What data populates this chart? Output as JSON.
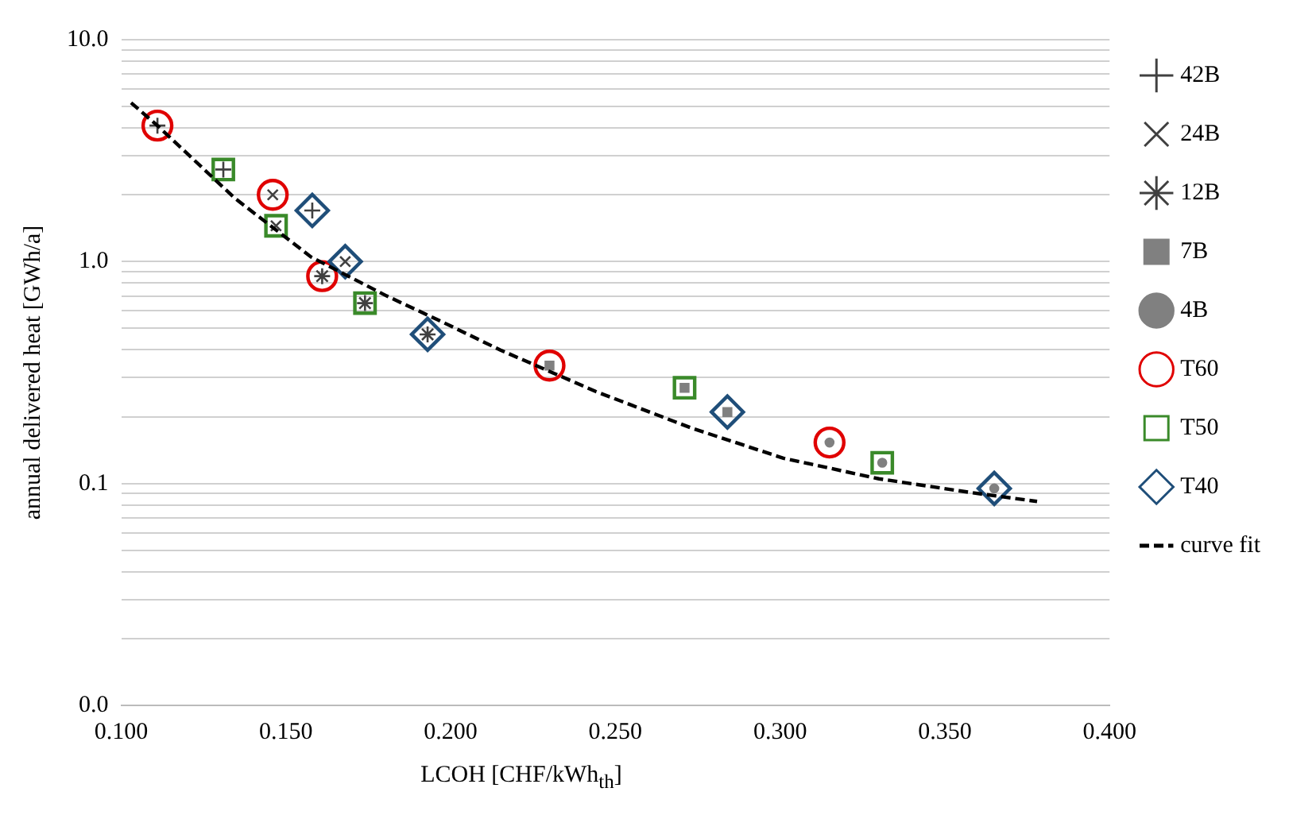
{
  "chart_data": {
    "type": "scatter",
    "xlabel": "LCOH [CHF/kWh$_{th}$]",
    "ylabel": "annual delivered heat [GWh/a]",
    "log": "y",
    "grid": "y",
    "legend": "right",
    "xlim": [
      0.1,
      0.4
    ],
    "xticks": [
      {
        "value": 0.1,
        "label": "0.100"
      },
      {
        "value": 0.15,
        "label": "0.150"
      },
      {
        "value": 0.2,
        "label": "0.200"
      },
      {
        "value": 0.25,
        "label": "0.250"
      },
      {
        "value": 0.3,
        "label": "0.300"
      },
      {
        "value": 0.35,
        "label": "0.350"
      },
      {
        "value": 0.4,
        "label": "0.400"
      }
    ],
    "ylim": [
      0.01,
      10
    ],
    "yticks": [
      {
        "value": 0.01,
        "label": "0.0"
      },
      {
        "value": 0.02,
        "label": null
      },
      {
        "value": 0.03,
        "label": null
      },
      {
        "value": 0.04,
        "label": null
      },
      {
        "value": 0.05,
        "label": null
      },
      {
        "value": 0.06,
        "label": null
      },
      {
        "value": 0.07,
        "label": null
      },
      {
        "value": 0.08,
        "label": null
      },
      {
        "value": 0.09,
        "label": null
      },
      {
        "value": 0.1,
        "label": "0.1"
      },
      {
        "value": 0.2,
        "label": null
      },
      {
        "value": 0.3,
        "label": null
      },
      {
        "value": 0.4,
        "label": null
      },
      {
        "value": 0.5,
        "label": null
      },
      {
        "value": 0.6,
        "label": null
      },
      {
        "value": 0.7,
        "label": null
      },
      {
        "value": 0.8,
        "label": null
      },
      {
        "value": 0.9,
        "label": null
      },
      {
        "value": 1,
        "label": "1.0"
      },
      {
        "value": 2,
        "label": null
      },
      {
        "value": 3,
        "label": null
      },
      {
        "value": 4,
        "label": null
      },
      {
        "value": 5,
        "label": null
      },
      {
        "value": 6,
        "label": null
      },
      {
        "value": 7,
        "label": null
      },
      {
        "value": 8,
        "label": null
      },
      {
        "value": 9,
        "label": null
      },
      {
        "value": 10,
        "label": "10.0"
      }
    ],
    "series": [
      {
        "name": "42B",
        "type": "scatter",
        "marker": "cross",
        "color": "#404040",
        "x": [
          0.111,
          0.131,
          0.158
        ],
        "values": [
          4.1,
          2.6,
          1.7
        ]
      },
      {
        "name": "24B",
        "type": "scatter",
        "marker": "x",
        "color": "#404040",
        "x": [
          0.146,
          0.147,
          0.168
        ],
        "values": [
          2.0,
          1.45,
          1.0
        ]
      },
      {
        "name": "12B",
        "type": "scatter",
        "color": "#404040",
        "x": [
          0.161,
          0.174,
          0.193
        ],
        "values": [
          0.86,
          0.65,
          0.47
        ]
      },
      {
        "name": "7B",
        "type": "scatter",
        "marker": "square",
        "color": "#808080",
        "x": [
          0.23,
          0.271,
          0.284
        ],
        "values": [
          0.34,
          0.27,
          0.21
        ]
      },
      {
        "name": "4B",
        "type": "scatter",
        "marker": "circle",
        "color": "#808080",
        "x": [
          0.315,
          0.331,
          0.365
        ],
        "values": [
          0.153,
          0.124,
          0.095
        ]
      },
      {
        "name": "T60",
        "type": "scatter",
        "marker": "circle",
        "color": "#e00000",
        "x": [
          0.111,
          0.146,
          0.161,
          0.23,
          0.315
        ],
        "values": [
          4.1,
          2.0,
          0.86,
          0.34,
          0.153
        ]
      },
      {
        "name": "T50",
        "type": "scatter",
        "marker": "square",
        "color": "#3a8a2a",
        "x": [
          0.131,
          0.147,
          0.174,
          0.271,
          0.331
        ],
        "values": [
          2.6,
          1.45,
          0.65,
          0.27,
          0.124
        ]
      },
      {
        "name": "T40",
        "type": "scatter",
        "marker": "diamond",
        "color": "#1f4e79",
        "x": [
          0.158,
          0.168,
          0.193,
          0.284,
          0.365
        ],
        "values": [
          1.7,
          1.0,
          0.47,
          0.21,
          0.095
        ]
      },
      {
        "name": "curve fit",
        "type": "line",
        "marker": "none",
        "line_style": "dashed",
        "color": "#000000",
        "x": [
          0.103,
          0.111,
          0.1345,
          0.1576,
          0.1806,
          0.198,
          0.215,
          0.244,
          0.273,
          0.301,
          0.33,
          0.358,
          0.378
        ],
        "values": [
          5.2,
          4.1,
          1.93,
          1.05,
          0.7,
          0.53,
          0.4,
          0.26,
          0.178,
          0.13,
          0.105,
          0.091,
          0.083
        ]
      }
    ]
  }
}
